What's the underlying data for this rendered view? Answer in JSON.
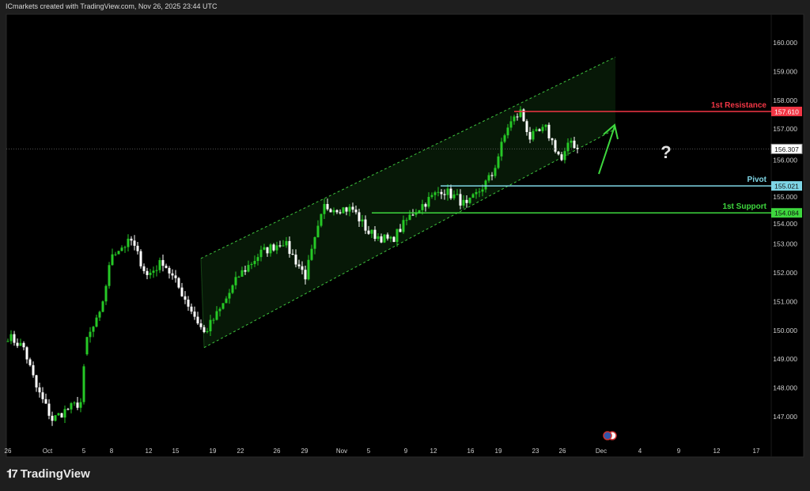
{
  "header": {
    "attribution": "ICmarkets created with TradingView.com, Nov 26, 2025 23:44 UTC"
  },
  "footer": {
    "brand": "TradingView"
  },
  "colors": {
    "up": "#26c826",
    "down": "#ffffff",
    "resistance": "#f23645",
    "pivot": "#7fd6e6",
    "support": "#3ed83e",
    "channel": "#3ec43e"
  },
  "chart_data": {
    "type": "candlestick",
    "symbol_note": "price in data units",
    "ylim": [
      146.3,
      160.8
    ],
    "y_ticks": [
      147,
      148,
      149,
      150,
      151,
      152,
      153,
      154,
      155,
      156,
      157,
      158,
      159,
      160
    ],
    "y_tick_labels": [
      "147.000",
      "148.000",
      "149.000",
      "150.000",
      "151.000",
      "152.000",
      "153.000",
      "154.000",
      "155.000",
      "156.000",
      "157.000",
      "158.000",
      "159.000",
      "160.000"
    ],
    "x_tick_labels": [
      "26",
      "Oct",
      "5",
      "8",
      "12",
      "15",
      "19",
      "22",
      "26",
      "29",
      "Nov",
      "5",
      "9",
      "12",
      "16",
      "19",
      "23",
      "26",
      "Dec",
      "4",
      "9",
      "12",
      "17"
    ],
    "path_keypoints": [
      [
        0,
        149.8
      ],
      [
        5,
        149.4
      ],
      [
        9,
        148.0
      ],
      [
        14,
        146.9
      ],
      [
        18,
        147.2
      ],
      [
        23,
        147.5
      ],
      [
        25,
        149.7
      ],
      [
        29,
        150.5
      ],
      [
        33,
        152.7
      ],
      [
        39,
        153.1
      ],
      [
        44,
        151.9
      ],
      [
        49,
        152.4
      ],
      [
        55,
        151.3
      ],
      [
        62,
        149.9
      ],
      [
        67,
        150.7
      ],
      [
        73,
        151.9
      ],
      [
        80,
        152.7
      ],
      [
        87,
        153.1
      ],
      [
        94,
        151.9
      ],
      [
        100,
        154.3
      ],
      [
        109,
        154.2
      ],
      [
        114,
        153.4
      ],
      [
        121,
        153.1
      ],
      [
        128,
        154.1
      ],
      [
        137,
        154.9
      ],
      [
        142,
        154.6
      ],
      [
        145,
        154.3
      ],
      [
        153,
        155.4
      ],
      [
        158,
        157.1
      ],
      [
        162,
        157.6
      ],
      [
        165,
        156.7
      ],
      [
        170,
        157.0
      ],
      [
        175,
        155.9
      ],
      [
        178,
        156.6
      ],
      [
        180,
        156.3
      ]
    ],
    "gap_after_bar": 24,
    "levels": [
      {
        "name": "1st Resistance",
        "value": 157.61,
        "label": "157.610"
      },
      {
        "name": "Pivot",
        "value": 155.021,
        "label": "155.021"
      },
      {
        "name": "1st Support",
        "value": 154.084,
        "label": "154.084"
      }
    ],
    "last_price": {
      "value": 156.307,
      "label": "156.307"
    },
    "channel": {
      "lower": [
        [
          62,
          149.4
        ],
        [
          192,
          157.0
        ]
      ],
      "upper": [
        [
          61,
          152.5
        ],
        [
          192,
          159.5
        ]
      ]
    },
    "annotations": {
      "arrow": "up",
      "question_mark": "?"
    }
  }
}
